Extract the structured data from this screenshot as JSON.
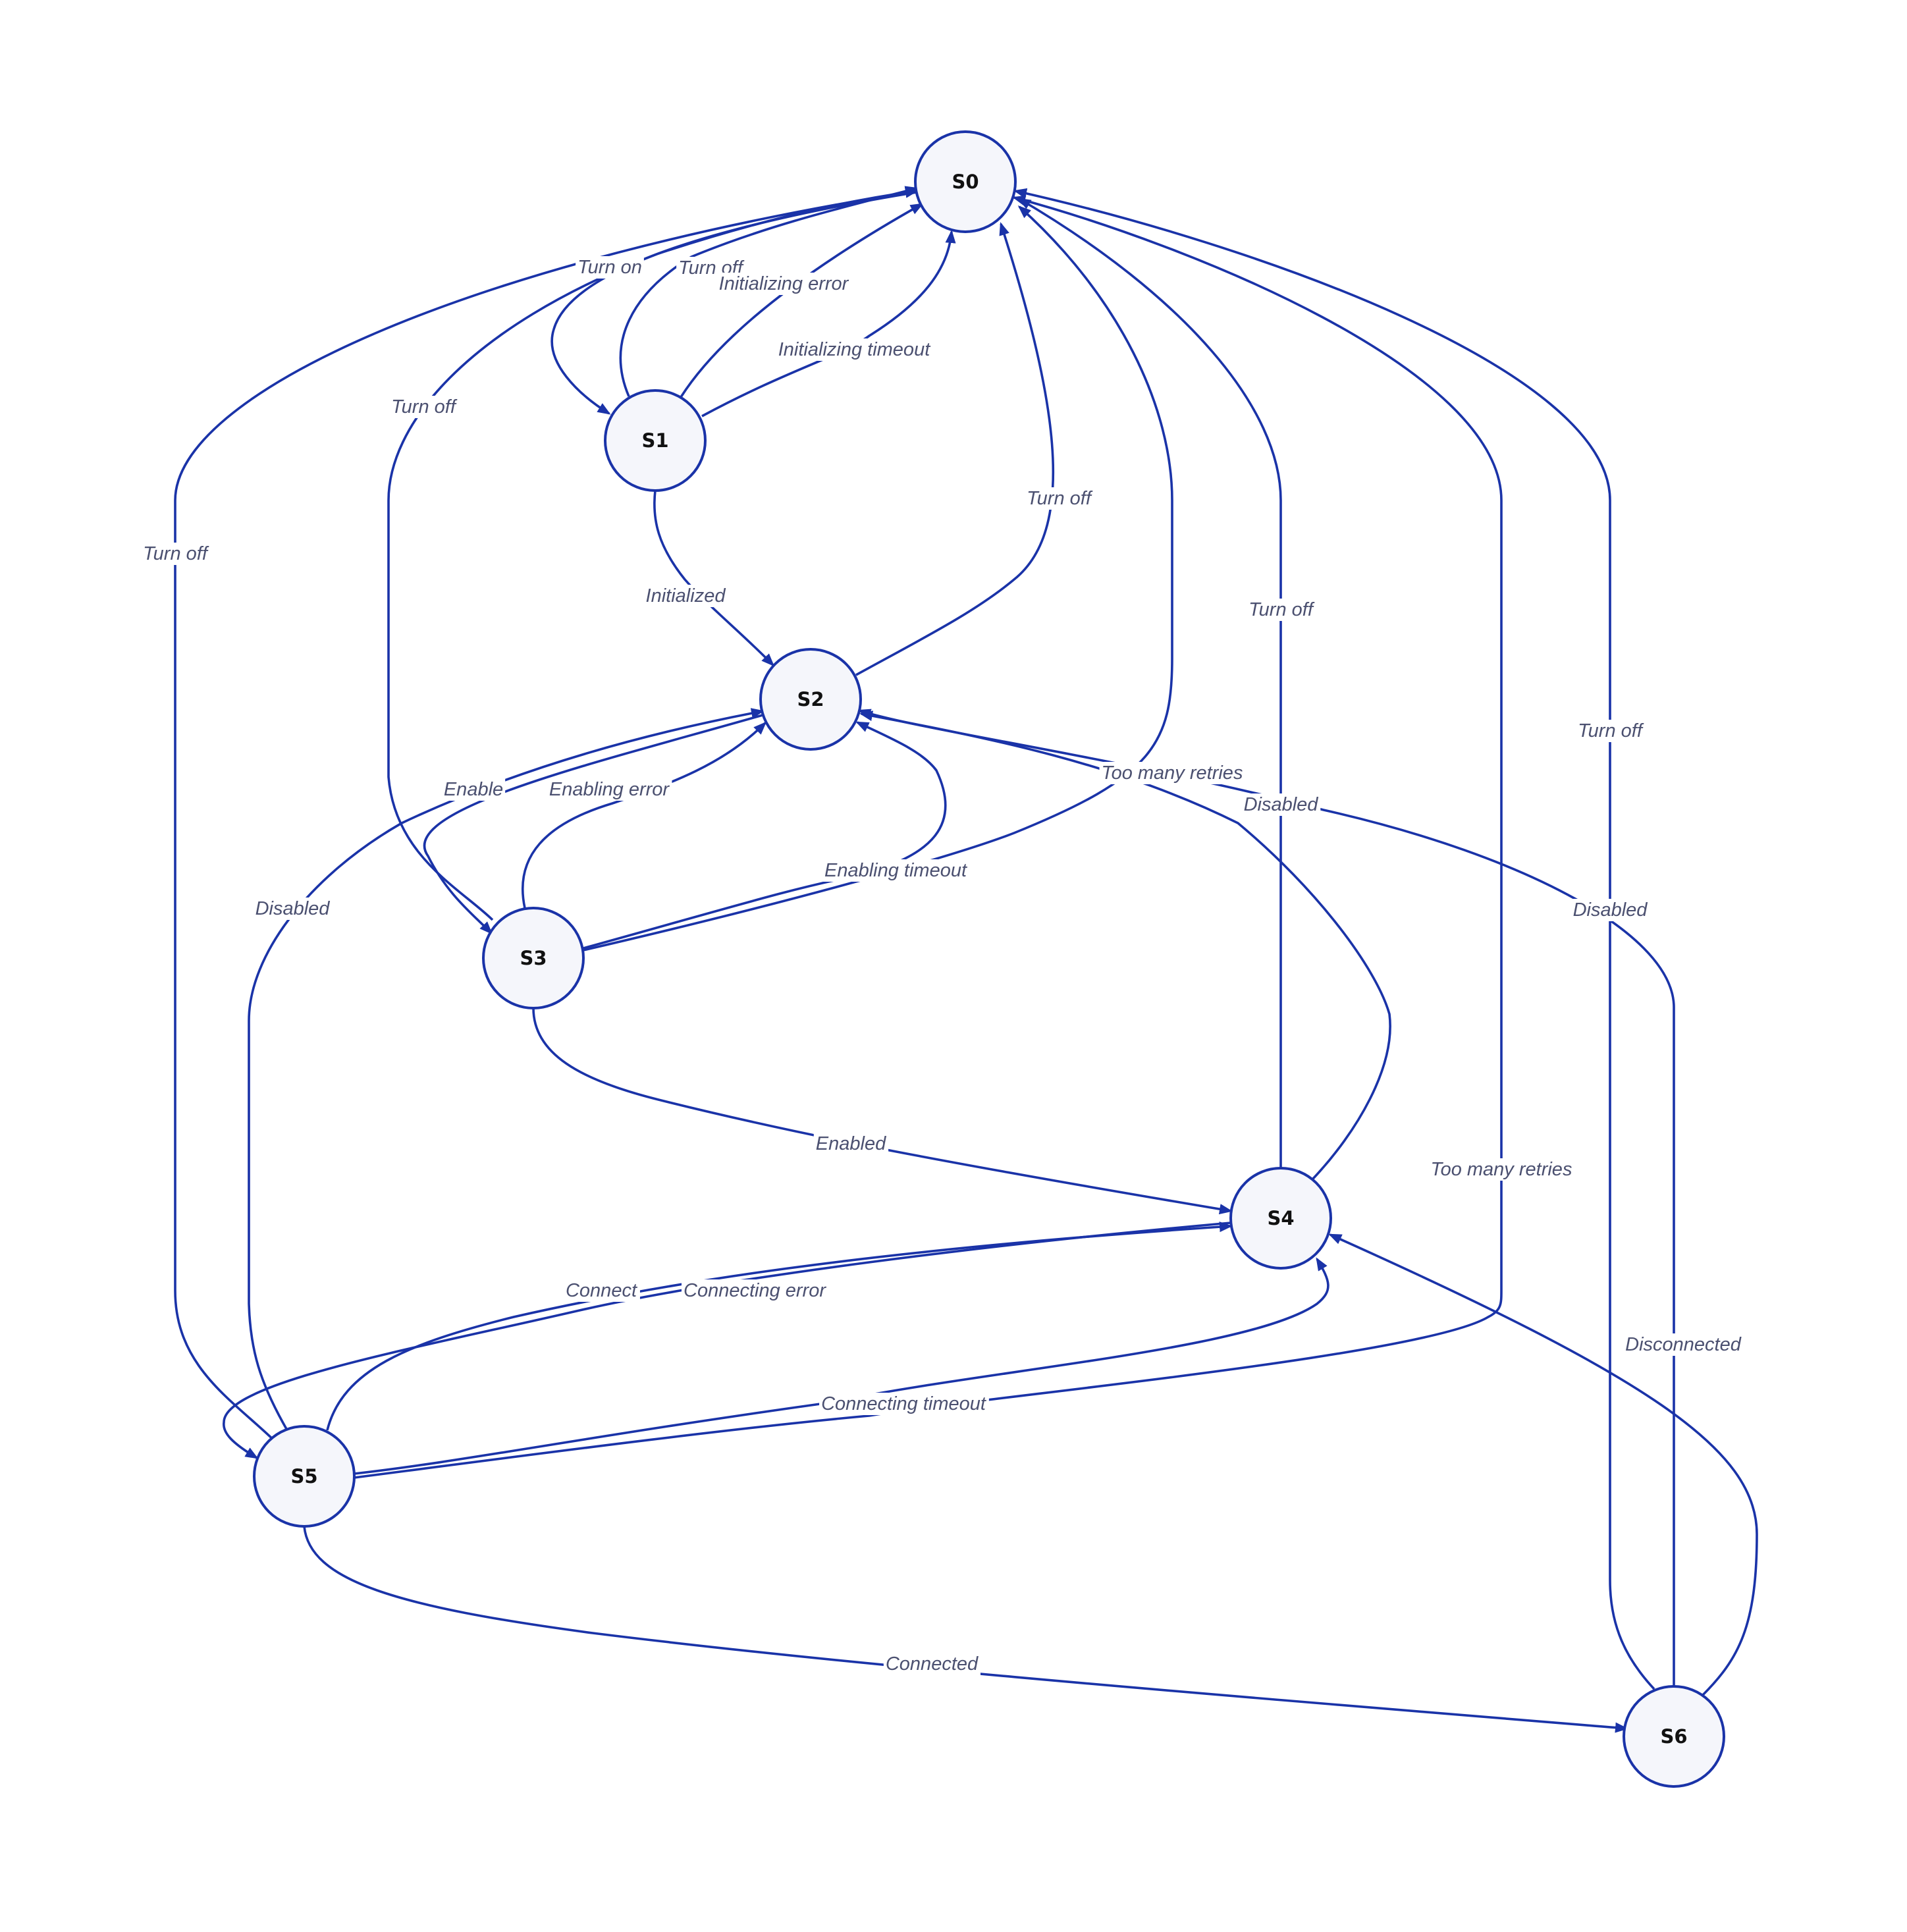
{
  "colors": {
    "edge": "#1a33a8",
    "node_fill": "#f5f6fb",
    "node_stroke": "#1a33a8",
    "label_text": "#4b5070",
    "node_text": "#111111"
  },
  "nodes": [
    {
      "id": "S0",
      "label": "S0"
    },
    {
      "id": "S1",
      "label": "S1"
    },
    {
      "id": "S2",
      "label": "S2"
    },
    {
      "id": "S3",
      "label": "S3"
    },
    {
      "id": "S4",
      "label": "S4"
    },
    {
      "id": "S5",
      "label": "S5"
    },
    {
      "id": "S6",
      "label": "S6"
    }
  ],
  "edges": [
    {
      "from": "S0",
      "to": "S1",
      "label": "Turn on"
    },
    {
      "from": "S1",
      "to": "S0",
      "label": "Turn off"
    },
    {
      "from": "S1",
      "to": "S0",
      "label": "Initializing error"
    },
    {
      "from": "S1",
      "to": "S0",
      "label": "Initializing timeout"
    },
    {
      "from": "S1",
      "to": "S2",
      "label": "Initialized"
    },
    {
      "from": "S2",
      "to": "S0",
      "label": "Turn off"
    },
    {
      "from": "S3",
      "to": "S0",
      "label": "Turn off"
    },
    {
      "from": "S2",
      "to": "S3",
      "label": "Enable"
    },
    {
      "from": "S3",
      "to": "S2",
      "label": "Enabling error"
    },
    {
      "from": "S3",
      "to": "S2",
      "label": "Enabling timeout"
    },
    {
      "from": "S3",
      "to": "S0",
      "label": "Too many retries"
    },
    {
      "from": "S3",
      "to": "S4",
      "label": "Enabled"
    },
    {
      "from": "S4",
      "to": "S0",
      "label": "Turn off"
    },
    {
      "from": "S4",
      "to": "S2",
      "label": "Disabled"
    },
    {
      "from": "S5",
      "to": "S0",
      "label": "Turn off"
    },
    {
      "from": "S5",
      "to": "S2",
      "label": "Disabled"
    },
    {
      "from": "S4",
      "to": "S5",
      "label": "Connect"
    },
    {
      "from": "S5",
      "to": "S4",
      "label": "Connecting error"
    },
    {
      "from": "S5",
      "to": "S4",
      "label": "Connecting timeout"
    },
    {
      "from": "S5",
      "to": "S0",
      "label": "Too many retries"
    },
    {
      "from": "S5",
      "to": "S6",
      "label": "Connected"
    },
    {
      "from": "S6",
      "to": "S0",
      "label": "Turn off"
    },
    {
      "from": "S6",
      "to": "S2",
      "label": "Disabled"
    },
    {
      "from": "S6",
      "to": "S4",
      "label": "Disconnected"
    }
  ]
}
